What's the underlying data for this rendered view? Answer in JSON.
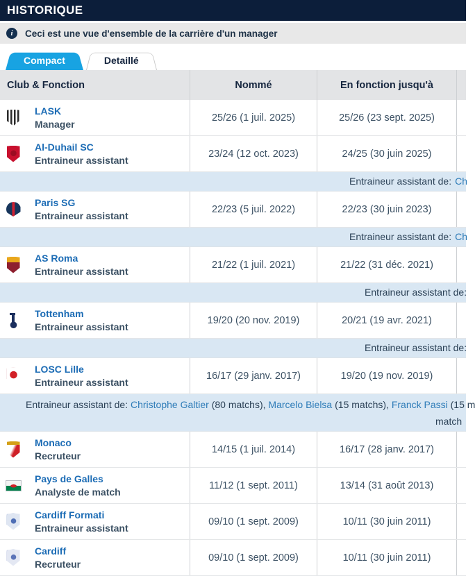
{
  "page_title": "HISTORIQUE",
  "info": {
    "icon": "info-icon",
    "text": "Ceci est une vue d'ensemble de la carrière d'un manager"
  },
  "tabs": [
    {
      "label": "Compact",
      "active": true
    },
    {
      "label": "Detaillé",
      "active": false
    }
  ],
  "colors": {
    "title_bar_bg": "#0c1e3a",
    "active_tab_bg": "#18a3e2",
    "club_link": "#1c6cb5",
    "sub_row_bg": "#d9e7f3",
    "sub_link": "#2e7cb8",
    "table_header_bg": "#e3e4e6"
  },
  "table": {
    "columns": [
      "Club & Fonction",
      "Nommé",
      "En fonction jusqu'à"
    ],
    "rows": [
      {
        "club": "LASK",
        "role": "Manager",
        "appointed": "25/26 (1 juil. 2025)",
        "until": "25/26 (23 sept. 2025)",
        "crest": {
          "id": "lask",
          "colors": [
            "#2b2b2b",
            "#ffffff"
          ]
        },
        "sub": null
      },
      {
        "club": "Al-Duhail SC",
        "role": "Entraineur assistant",
        "appointed": "23/24 (12 oct. 2023)",
        "until": "24/25 (30 juin 2025)",
        "crest": {
          "id": "alduhail",
          "colors": [
            "#c8102e",
            "#9c0c22"
          ]
        },
        "sub": {
          "label": "Entraineur assistant de:",
          "link": "Ch"
        }
      },
      {
        "club": "Paris SG",
        "role": "Entraineur assistant",
        "appointed": "22/23 (5 juil. 2022)",
        "until": "22/23 (30 juin 2023)",
        "crest": {
          "id": "psg",
          "colors": [
            "#17365c",
            "#d02030"
          ]
        },
        "sub": {
          "label": "Entraineur assistant de:",
          "link": "Ch"
        }
      },
      {
        "club": "AS Roma",
        "role": "Entraineur assistant",
        "appointed": "21/22 (1 juil. 2021)",
        "until": "21/22 (31 déc. 2021)",
        "crest": {
          "id": "roma",
          "colors": [
            "#8e1f2f",
            "#e9a71c"
          ]
        },
        "sub": {
          "label": "Entraineur assistant de:",
          "link": ""
        }
      },
      {
        "club": "Tottenham",
        "role": "Entraineur assistant",
        "appointed": "19/20 (20 nov. 2019)",
        "until": "20/21 (19 avr. 2021)",
        "crest": {
          "id": "tottenham",
          "colors": [
            "#ffffff",
            "#1b2f5e"
          ]
        },
        "sub": {
          "label": "Entraineur assistant de:",
          "link": ""
        }
      },
      {
        "club": "LOSC Lille",
        "role": "Entraineur assistant",
        "appointed": "16/17 (29 janv. 2017)",
        "until": "19/20 (19 nov. 2019)",
        "crest": {
          "id": "losc",
          "colors": [
            "#ffffff",
            "#d22027"
          ]
        },
        "sub": {
          "segments": [
            {
              "text": "Entraineur assistant de: ",
              "link": false
            },
            {
              "text": "Christophe Galtier",
              "link": true
            },
            {
              "text": " (80 matchs), ",
              "link": false
            },
            {
              "text": "Marcelo Bielsa",
              "link": true
            },
            {
              "text": " (15 matchs), ",
              "link": false
            },
            {
              "text": "Franck Passi",
              "link": true
            },
            {
              "text": " (15 m",
              "link": false
            }
          ],
          "line2": "match"
        }
      },
      {
        "club": "Monaco",
        "role": "Recruteur",
        "appointed": "14/15 (1 juil. 2014)",
        "until": "16/17 (28 janv. 2017)",
        "crest": {
          "id": "monaco",
          "colors": [
            "#ffffff",
            "#cf2027",
            "#d4a017"
          ]
        },
        "sub": null
      },
      {
        "club": "Pays de Galles",
        "role": "Analyste de match",
        "appointed": "11/12 (1 sept. 2011)",
        "until": "13/14 (31 août 2013)",
        "crest": {
          "id": "wales",
          "colors": [
            "#f2f2f2",
            "#00804a",
            "#cf2027"
          ]
        },
        "sub": null
      },
      {
        "club": "Cardiff Formati",
        "role": "Entraineur assistant",
        "appointed": "09/10 (1 sept. 2009)",
        "until": "10/11 (30 juin 2011)",
        "crest": {
          "id": "cardiff1",
          "colors": [
            "#dfe6f2",
            "#4f6fb5"
          ]
        },
        "sub": null
      },
      {
        "club": "Cardiff",
        "role": "Recruteur",
        "appointed": "09/10 (1 sept. 2009)",
        "until": "10/11 (30 juin 2011)",
        "crest": {
          "id": "cardiff2",
          "colors": [
            "#e4e8f3",
            "#5b74b8"
          ]
        },
        "sub": null
      }
    ]
  }
}
